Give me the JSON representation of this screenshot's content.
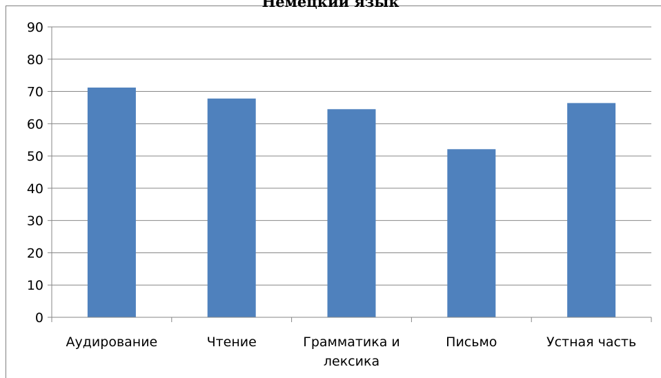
{
  "chart_data": {
    "type": "bar",
    "title": "Немецкий язык",
    "categories": [
      "Аудирование",
      "Чтение",
      "Грамматика и лексика",
      "Письмо",
      "Устная часть"
    ],
    "category_lines": [
      [
        "Аудирование"
      ],
      [
        "Чтение"
      ],
      [
        "Грамматика и",
        "лексика"
      ],
      [
        "Письмо"
      ],
      [
        "Устная часть"
      ]
    ],
    "values": [
      71.2,
      67.8,
      64.5,
      52.1,
      66.4
    ],
    "ylim": [
      0,
      90
    ],
    "yticks": [
      0,
      10,
      20,
      30,
      40,
      50,
      60,
      70,
      80,
      90
    ],
    "grid": true,
    "bar_color": "#4f81bd",
    "gridline_color": "#868686"
  }
}
